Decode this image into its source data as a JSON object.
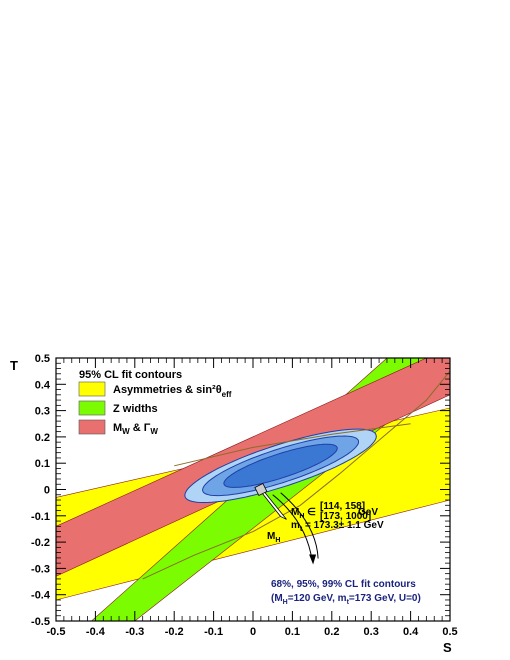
{
  "chart_data": {
    "type": "area",
    "xlabel": "S",
    "ylabel": "T",
    "xlim": [
      -0.5,
      0.5
    ],
    "ylim": [
      -0.5,
      0.5
    ],
    "x_ticks": [
      "-0.5",
      "-0.4",
      "-0.3",
      "-0.2",
      "-0.1",
      "0",
      "0.1",
      "0.2",
      "0.3",
      "0.4",
      "0.5"
    ],
    "y_ticks": [
      "-0.5",
      "-0.4",
      "-0.3",
      "-0.2",
      "-0.1",
      "0",
      "0.1",
      "0.2",
      "0.3",
      "0.4",
      "0.5"
    ],
    "x_tick_values": [
      -0.5,
      -0.4,
      -0.3,
      -0.2,
      -0.1,
      0,
      0.1,
      0.2,
      0.3,
      0.4,
      0.5
    ],
    "y_tick_values": [
      -0.5,
      -0.4,
      -0.3,
      -0.2,
      -0.1,
      0,
      0.1,
      0.2,
      0.3,
      0.4,
      0.5
    ],
    "grid": false,
    "legend": {
      "title": "95% CL fit contours",
      "placement": "top-left",
      "entries": [
        {
          "label": "Asymmetries & sin²θ",
          "sub": "eff",
          "color": "#ffff00"
        },
        {
          "label": "Z widths",
          "sub": "",
          "color": "#7cfc00"
        },
        {
          "label": "M",
          "sub": "W",
          "label2": " & Γ",
          "sub2": "W",
          "color": "#e8706e"
        }
      ]
    },
    "bands": [
      {
        "name": "Asymmetries & sin²θeff",
        "color": "#ffff00",
        "polygon": [
          [
            -0.5,
            -0.03
          ],
          [
            0.5,
            0.31
          ],
          [
            0.5,
            -0.04
          ],
          [
            -0.5,
            -0.42
          ]
        ]
      },
      {
        "name": "Z widths",
        "color": "#7cfc00",
        "polygon": [
          [
            -0.41,
            -0.5
          ],
          [
            -0.3,
            -0.5
          ],
          [
            0.5,
            0.44
          ],
          [
            0.5,
            0.5
          ],
          [
            0.34,
            0.5
          ]
        ]
      },
      {
        "name": "MW & ΓW",
        "color": "#e8706e",
        "polygon": [
          [
            -0.5,
            -0.14
          ],
          [
            -0.5,
            -0.33
          ],
          [
            0.5,
            0.36
          ],
          [
            0.5,
            0.5
          ],
          [
            0.44,
            0.5
          ]
        ]
      }
    ],
    "ellipses": [
      {
        "level": "99%",
        "center": [
          0.07,
          0.09
        ],
        "angle_deg": 27,
        "semi_major": 0.27,
        "semi_minor": 0.075,
        "fill": "#b0d4f6"
      },
      {
        "level": "95%",
        "center": [
          0.07,
          0.09
        ],
        "angle_deg": 27,
        "semi_major": 0.22,
        "semi_minor": 0.06,
        "fill": "#6fa4e6"
      },
      {
        "level": "68%",
        "center": [
          0.07,
          0.09
        ],
        "angle_deg": 27,
        "semi_major": 0.16,
        "semi_minor": 0.043,
        "fill": "#3a78d4"
      }
    ],
    "sm_curve": {
      "points": [
        [
          -0.28,
          -0.34
        ],
        [
          -0.15,
          -0.25
        ],
        [
          0.0,
          -0.16
        ],
        [
          0.12,
          -0.06
        ],
        [
          0.22,
          0.06
        ],
        [
          0.33,
          0.2
        ],
        [
          0.44,
          0.34
        ],
        [
          0.5,
          0.45
        ]
      ],
      "color": "#8b6c2a"
    },
    "sm_ref_line": {
      "points": [
        [
          -0.2,
          0.09
        ],
        [
          0.0,
          0.16
        ],
        [
          0.2,
          0.21
        ],
        [
          0.4,
          0.25
        ]
      ],
      "color": "#8b6c2a"
    },
    "sm_marker": {
      "x": 0.02,
      "y": 0.0
    },
    "arrows": [
      {
        "label": "mt",
        "from": [
          0.02,
          0.0
        ],
        "to": [
          0.08,
          -0.11
        ]
      },
      {
        "label": "MH",
        "from": [
          0.05,
          -0.02
        ],
        "to": [
          0.15,
          -0.27
        ]
      }
    ],
    "annotations": {
      "mh_range_prefix": "M",
      "mh_range_sub": "H",
      "mh_range_sym": " ∈ ",
      "mh_range_top": "[114, 158]",
      "mh_range_bottom": "[173, 1000]",
      "mh_range_unit": " GeV",
      "mt_line": "m",
      "mt_sub": "t",
      "mt_value": " = 173.3± 1.1 GeV",
      "mh_arrow_label": "M",
      "mh_arrow_sub": "H",
      "contour_title": "68%, 95%, 99% CL fit contours",
      "contour_sub_1": "(M",
      "contour_sub_1s": "H",
      "contour_sub_2": "=120 GeV, m",
      "contour_sub_2s": "t",
      "contour_sub_3": "=173 GeV, U=0)"
    }
  }
}
